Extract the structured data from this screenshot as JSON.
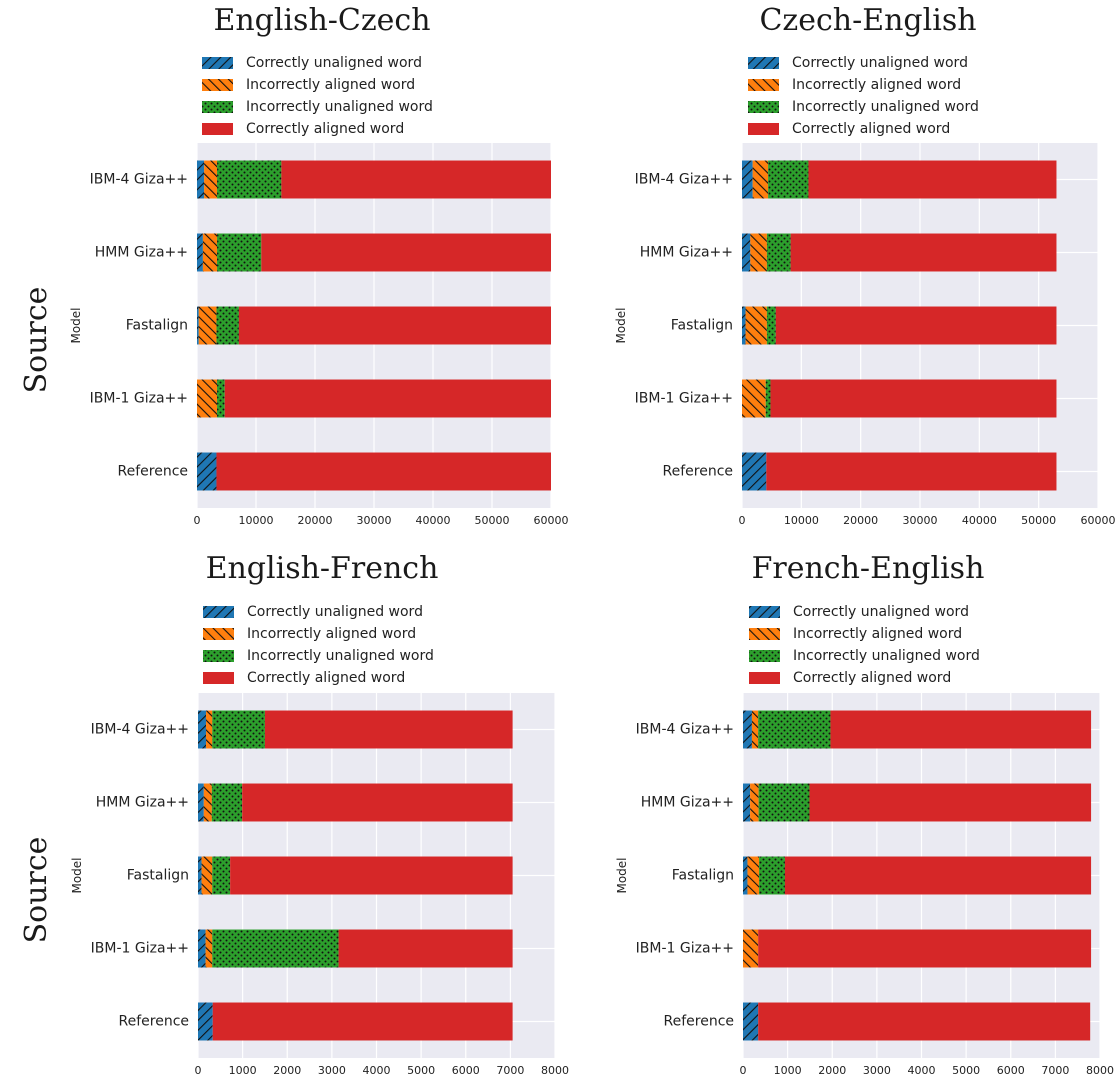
{
  "row_labels": [
    "Source",
    "Source"
  ],
  "colors": {
    "correctly_unaligned": "#1f77b4",
    "incorrectly_aligned": "#ff7f0e",
    "incorrectly_unaligned": "#2ca02c",
    "correctly_aligned": "#d62728",
    "plot_background": "#eaeaf2"
  },
  "chart_data": [
    {
      "type": "bar",
      "orientation": "horizontal",
      "stacked": true,
      "title": "English-Czech",
      "ylabel": "Model",
      "xlabel": "",
      "categories": [
        "IBM-4 Giza++",
        "HMM Giza++",
        "Fastalign",
        "IBM-1 Giza++",
        "Reference"
      ],
      "xlim": [
        0,
        60000
      ],
      "xticks": [
        0,
        10000,
        20000,
        30000,
        40000,
        50000,
        60000
      ],
      "grid": true,
      "legend_position": "top",
      "series": [
        {
          "name": "Correctly unaligned word",
          "values": [
            1200,
            1000,
            300,
            0,
            3300
          ]
        },
        {
          "name": "Incorrectly aligned word",
          "values": [
            2200,
            2400,
            3000,
            3400,
            0
          ]
        },
        {
          "name": "Incorrectly unaligned word",
          "values": [
            10900,
            7500,
            3800,
            1300,
            0
          ]
        },
        {
          "name": "Correctly aligned word",
          "values": [
            45700,
            49100,
            52900,
            55300,
            56700
          ]
        }
      ]
    },
    {
      "type": "bar",
      "orientation": "horizontal",
      "stacked": true,
      "title": "Czech-English",
      "ylabel": "Model",
      "xlabel": "",
      "categories": [
        "IBM-4 Giza++",
        "HMM Giza++",
        "Fastalign",
        "IBM-1 Giza++",
        "Reference"
      ],
      "xlim": [
        0,
        60000
      ],
      "xticks": [
        0,
        10000,
        20000,
        30000,
        40000,
        50000,
        60000
      ],
      "grid": true,
      "legend_position": "top",
      "series": [
        {
          "name": "Correctly unaligned word",
          "values": [
            1800,
            1400,
            600,
            0,
            4100
          ]
        },
        {
          "name": "Incorrectly aligned word",
          "values": [
            2600,
            2800,
            3600,
            4000,
            0
          ]
        },
        {
          "name": "Incorrectly unaligned word",
          "values": [
            6800,
            4000,
            1500,
            800,
            0
          ]
        },
        {
          "name": "Correctly aligned word",
          "values": [
            41800,
            44800,
            47300,
            48200,
            48900
          ]
        }
      ]
    },
    {
      "type": "bar",
      "orientation": "horizontal",
      "stacked": true,
      "title": "English-French",
      "ylabel": "Model",
      "xlabel": "",
      "categories": [
        "IBM-4 Giza++",
        "HMM Giza++",
        "Fastalign",
        "IBM-1 Giza++",
        "Reference"
      ],
      "xlim": [
        0,
        8000
      ],
      "xticks": [
        0,
        1000,
        2000,
        3000,
        4000,
        5000,
        6000,
        7000,
        8000
      ],
      "grid": true,
      "legend_position": "top",
      "series": [
        {
          "name": "Correctly unaligned word",
          "values": [
            180,
            130,
            80,
            170,
            330
          ]
        },
        {
          "name": "Incorrectly aligned word",
          "values": [
            140,
            180,
            240,
            150,
            0
          ]
        },
        {
          "name": "Incorrectly unaligned word",
          "values": [
            1180,
            680,
            400,
            2830,
            0
          ]
        },
        {
          "name": "Correctly aligned word",
          "values": [
            5550,
            6060,
            6330,
            3900,
            6720
          ]
        }
      ]
    },
    {
      "type": "bar",
      "orientation": "horizontal",
      "stacked": true,
      "title": "French-English",
      "ylabel": "Model",
      "xlabel": "",
      "categories": [
        "IBM-4 Giza++",
        "HMM Giza++",
        "Fastalign",
        "IBM-1 Giza++",
        "Reference"
      ],
      "xlim": [
        0,
        8000
      ],
      "xticks": [
        0,
        1000,
        2000,
        3000,
        4000,
        5000,
        6000,
        7000,
        8000
      ],
      "grid": true,
      "legend_position": "top",
      "series": [
        {
          "name": "Correctly unaligned word",
          "values": [
            200,
            160,
            100,
            0,
            340
          ]
        },
        {
          "name": "Incorrectly aligned word",
          "values": [
            140,
            190,
            260,
            340,
            0
          ]
        },
        {
          "name": "Incorrectly unaligned word",
          "values": [
            1620,
            1140,
            580,
            0,
            0
          ]
        },
        {
          "name": "Correctly aligned word",
          "values": [
            5840,
            6310,
            6860,
            7460,
            7440
          ]
        }
      ]
    }
  ]
}
